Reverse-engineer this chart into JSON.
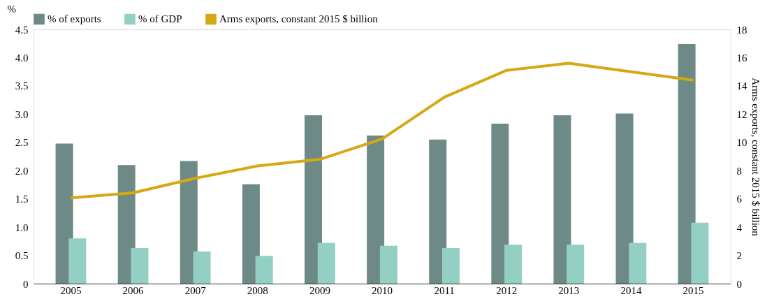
{
  "chart_data": {
    "type": "bar",
    "categories": [
      "2005",
      "2006",
      "2007",
      "2008",
      "2009",
      "2010",
      "2011",
      "2012",
      "2013",
      "2014",
      "2015"
    ],
    "ylabel": "%",
    "y2label": "Arms exports, constant 2015 $ billion",
    "ylim": [
      0,
      4.5
    ],
    "yticks": [
      0,
      0.5,
      {
        "value": 1,
        "label": "1.0"
      },
      1.5,
      {
        "value": 2,
        "label": "2.0"
      },
      2.5,
      {
        "value": 3,
        "label": "3.0"
      },
      3.5,
      {
        "value": 4,
        "label": "4.0"
      },
      4.5
    ],
    "y2lim": [
      0,
      18
    ],
    "y2ticks": [
      0,
      2,
      4,
      6,
      8,
      10,
      12,
      14,
      16,
      18
    ],
    "legend": "top",
    "grid": false,
    "series": [
      {
        "name": "% of exports",
        "color": "#6e8a86",
        "values": [
          2.48,
          2.1,
          2.17,
          1.76,
          2.98,
          2.62,
          2.55,
          2.83,
          2.98,
          3.01,
          4.24
        ]
      },
      {
        "name": "% of GDP",
        "color": "#93cfc2",
        "values": [
          0.8,
          0.63,
          0.57,
          0.49,
          0.72,
          0.67,
          0.63,
          0.69,
          0.69,
          0.72,
          1.08
        ]
      },
      {
        "name": "Arms exports, constant 2015 $ billion",
        "color": "#d6a811",
        "type": "line",
        "axis": "y2",
        "values": [
          6.07,
          6.43,
          7.46,
          8.33,
          8.8,
          10.24,
          13.2,
          15.1,
          15.6,
          15.0,
          14.4
        ]
      }
    ]
  }
}
